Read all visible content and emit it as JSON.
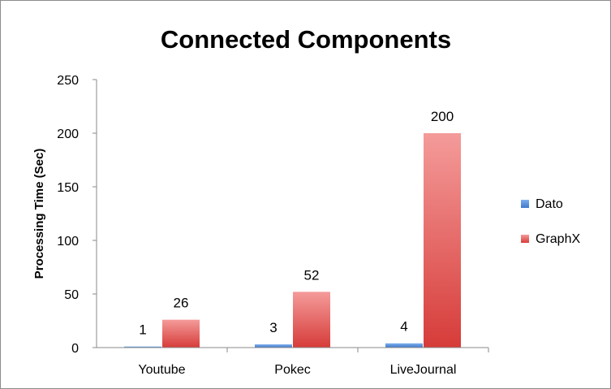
{
  "chart_data": {
    "type": "bar",
    "title": "Connected Components",
    "xlabel": "",
    "ylabel": "Processing Time (Sec)",
    "ylim": [
      0,
      250
    ],
    "yticks": [
      0,
      50,
      100,
      150,
      200,
      250
    ],
    "categories": [
      "Youtube",
      "Pokec",
      "LiveJournal"
    ],
    "series": [
      {
        "name": "Dato",
        "values": [
          1,
          3,
          4
        ],
        "color": "#4a86d6"
      },
      {
        "name": "GraphX",
        "values": [
          26,
          52,
          200
        ],
        "color": "#d9423f"
      }
    ],
    "grid": false,
    "legend": "right"
  }
}
